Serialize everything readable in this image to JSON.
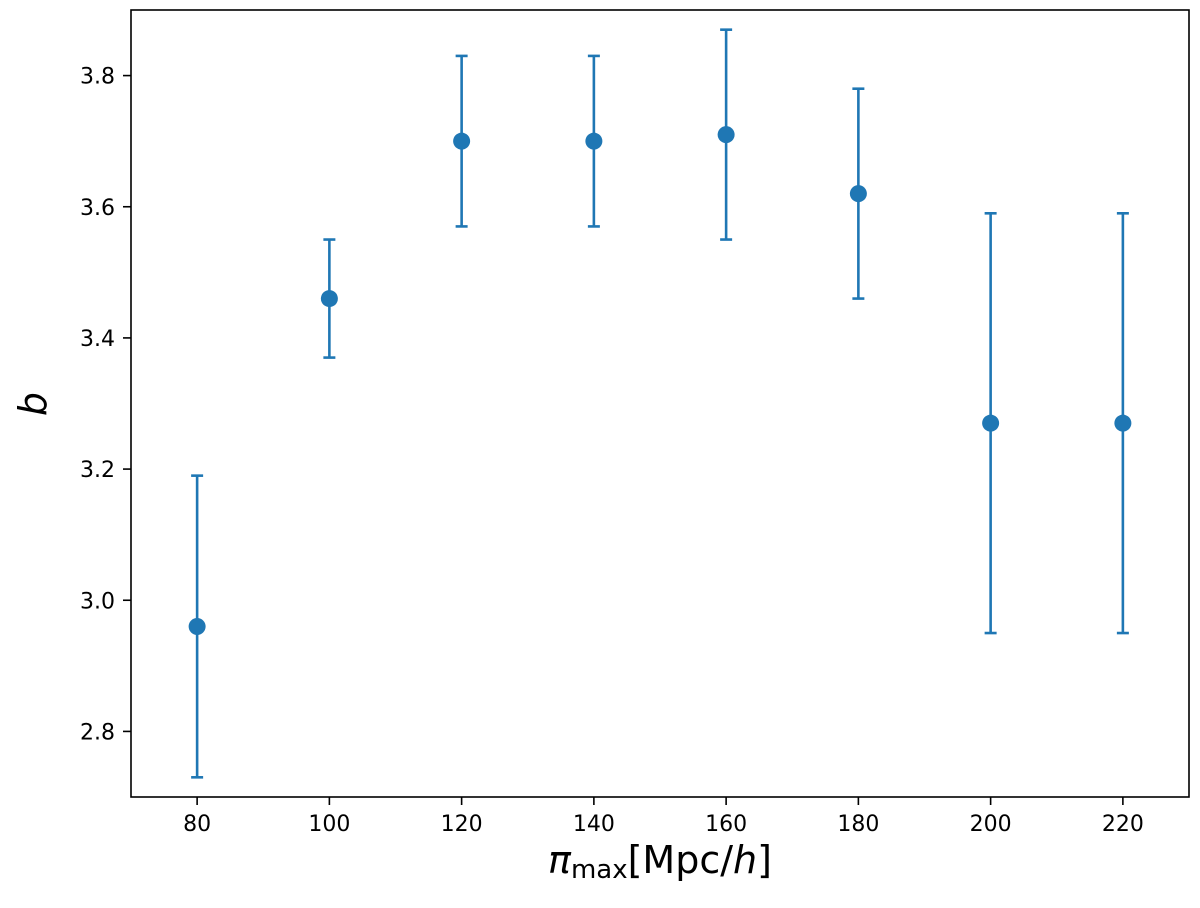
{
  "chart_data": {
    "type": "scatter",
    "x": [
      80,
      100,
      120,
      140,
      160,
      180,
      200,
      220
    ],
    "y": [
      2.96,
      3.46,
      3.7,
      3.7,
      3.71,
      3.62,
      3.27,
      3.27
    ],
    "yerr_low": [
      2.73,
      3.37,
      3.57,
      3.57,
      3.55,
      3.46,
      2.95,
      2.95
    ],
    "yerr_high": [
      3.19,
      3.55,
      3.83,
      3.83,
      3.87,
      3.78,
      3.59,
      3.59
    ],
    "xlabel": {
      "symbol": "π",
      "subscript": "max",
      "bracket_open": "[",
      "unit": "Mpc/",
      "unit_italic": "h",
      "bracket_close": "]"
    },
    "ylabel": "b",
    "xlim": [
      70,
      230
    ],
    "ylim": [
      2.7,
      3.9
    ],
    "xticks": [
      "80",
      "100",
      "120",
      "140",
      "160",
      "180",
      "200",
      "220"
    ],
    "yticks": [
      "2.8",
      "3.0",
      "3.2",
      "3.4",
      "3.6",
      "3.8"
    ],
    "color": "#1f77b4",
    "grid": false,
    "legend": "none"
  }
}
